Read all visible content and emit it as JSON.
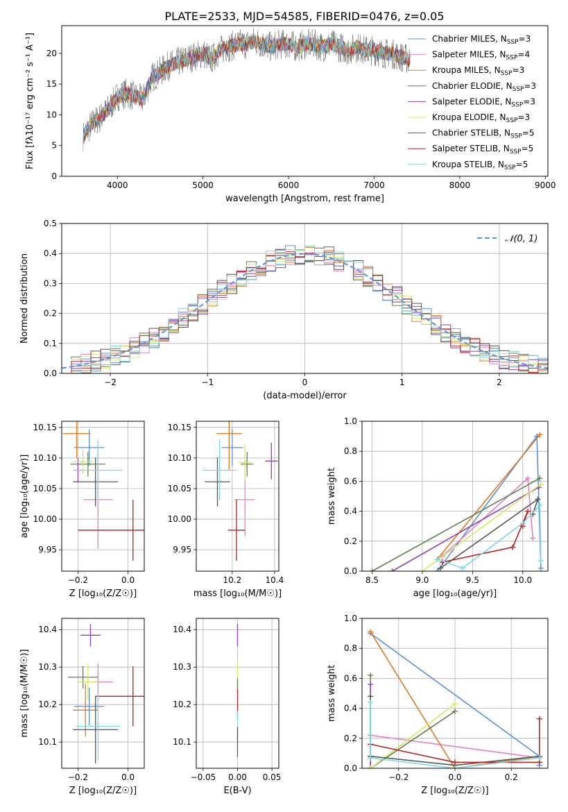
{
  "figure": {
    "title": "PLATE=2533, MJD=54585, FIBERID=0476, z=0.05"
  },
  "colors": {
    "chabrier_miles": "#5b8fd9",
    "salpeter_miles": "#e67fbf",
    "kroupa_miles": "#e0781f",
    "chabrier_elodie": "#5f7f4f",
    "salpeter_elodie": "#8e3fb0",
    "kroupa_elodie": "#d6e860",
    "chabrier_stelib": "#555555",
    "salpeter_stelib": "#b5221f",
    "kroupa_stelib": "#7fd6e3",
    "normal": "#6a93d6",
    "grid": "#b0b0b0"
  },
  "chart_data": [
    {
      "id": "spectrum",
      "type": "line",
      "xlabel": "wavelength [Angstrom, rest frame]",
      "ylabel": "Flux [fλ10⁻¹⁷ erg cm⁻² s⁻¹ A⁻¹]",
      "xlim": [
        3350,
        9030
      ],
      "ylim": [
        0,
        24.5
      ],
      "xticks": [
        4000,
        5000,
        6000,
        7000,
        8000,
        9000
      ],
      "yticks": [
        0,
        5,
        10,
        15,
        20
      ],
      "grid": false,
      "legend_position": "right",
      "legend": [
        "Chabrier MILES, N_SSP=3",
        "Salpeter MILES, N_SSP=4",
        "Kroupa MILES, N_SSP=3",
        "Chabrier ELODIE, N_SSP=3",
        "Salpeter ELODIE, N_SSP=3",
        "Kroupa ELODIE, N_SSP=3",
        "Chabrier STELIB, N_SSP=5",
        "Salpeter STELIB, N_SSP=5",
        "Kroupa STELIB, N_SSP=5"
      ],
      "data_wavelength": [
        3600,
        3700,
        3800,
        3900,
        4000,
        4100,
        4200,
        4300,
        4400,
        4500,
        4600,
        4700,
        4800,
        4900,
        5000,
        5100,
        5200,
        5300,
        5400,
        5500,
        5600,
        5700,
        5800,
        5900,
        6000,
        6100,
        6200,
        6300,
        6400,
        6500,
        6600,
        6700,
        6800,
        6900,
        7000,
        7100,
        7200,
        7300,
        7400
      ],
      "data_flux": [
        6.5,
        8.5,
        9.5,
        11.0,
        13.0,
        13.5,
        13.0,
        12.5,
        16.0,
        17.0,
        18.0,
        18.5,
        19.0,
        19.5,
        20.0,
        19.0,
        20.5,
        21.0,
        21.5,
        21.5,
        22.0,
        21.5,
        21.0,
        21.5,
        21.5,
        21.0,
        21.5,
        21.5,
        21.0,
        21.5,
        21.0,
        20.5,
        21.0,
        20.5,
        20.5,
        20.0,
        20.0,
        19.5,
        19.0
      ]
    },
    {
      "id": "residuals",
      "type": "histogram",
      "xlabel": "(data-model)/error",
      "ylabel": "Normed distribution",
      "xlim": [
        -2.5,
        2.5
      ],
      "ylim": [
        0,
        0.5
      ],
      "xticks": [
        -2,
        -1,
        0,
        1,
        2
      ],
      "yticks": [
        0.0,
        0.1,
        0.2,
        0.3,
        0.4,
        0.5
      ],
      "grid": true,
      "legend_position": "top-right",
      "legend": [
        "𝒩(0, 1)"
      ],
      "bin_width": 0.1
    },
    {
      "id": "age_vs_Z",
      "type": "errorbar",
      "xlabel": "Z [log₁₀(Z/Z☉)]",
      "ylabel": "age  [log₁₀(age/yr)]",
      "xlim": [
        -0.265,
        0.065
      ],
      "ylim": [
        9.915,
        10.16
      ],
      "xticks": [
        -0.2,
        0.0
      ],
      "yticks": [
        9.95,
        10.0,
        10.05,
        10.1,
        10.15
      ],
      "grid": true,
      "points": [
        {
          "model": "chabrier_miles",
          "x": -0.155,
          "xerr": 0.06,
          "y": 10.117,
          "yerr": 0.03
        },
        {
          "model": "salpeter_miles",
          "x": -0.12,
          "xerr": 0.06,
          "y": 10.032,
          "yerr": 0.08
        },
        {
          "model": "kroupa_miles",
          "x": -0.205,
          "xerr": 0.055,
          "y": 10.14,
          "yerr": 0.04
        },
        {
          "model": "chabrier_elodie",
          "x": -0.16,
          "xerr": 0.07,
          "y": 10.09,
          "yerr": 0.02
        },
        {
          "model": "salpeter_elodie",
          "x": -0.2,
          "xerr": 0.015,
          "y": 10.08,
          "yerr": 0.02
        },
        {
          "model": "kroupa_elodie",
          "x": -0.18,
          "xerr": 0.04,
          "y": 10.094,
          "yerr": 0.02
        },
        {
          "model": "chabrier_stelib",
          "x": -0.13,
          "xerr": 0.09,
          "y": 10.061,
          "yerr": 0.04
        },
        {
          "model": "salpeter_stelib",
          "x": 0.02,
          "xerr": 0.22,
          "y": 9.982,
          "yerr": 0.05
        },
        {
          "model": "kroupa_stelib",
          "x": -0.12,
          "xerr": 0.1,
          "y": 10.08,
          "yerr": 0.05
        }
      ]
    },
    {
      "id": "age_vs_mass",
      "type": "errorbar",
      "xlabel": "mass [log₁₀(M/M☉)]",
      "ylabel": "",
      "xlim": [
        10.03,
        10.42
      ],
      "ylim": [
        9.915,
        10.16
      ],
      "xticks": [
        10.2,
        10.4
      ],
      "yticks": [
        9.95,
        10.0,
        10.05,
        10.1,
        10.15
      ],
      "grid": true,
      "points": [
        {
          "model": "chabrier_miles",
          "x": 10.2,
          "xerr": 0.05,
          "y": 10.117,
          "yerr": 0.03
        },
        {
          "model": "salpeter_miles",
          "x": 10.26,
          "xerr": 0.05,
          "y": 10.032,
          "yerr": 0.06
        },
        {
          "model": "kroupa_miles",
          "x": 10.185,
          "xerr": 0.06,
          "y": 10.14,
          "yerr": 0.06
        },
        {
          "model": "chabrier_elodie",
          "x": 10.27,
          "xerr": 0.03,
          "y": 10.09,
          "yerr": 0.02
        },
        {
          "model": "salpeter_elodie",
          "x": 10.385,
          "xerr": 0.03,
          "y": 10.095,
          "yerr": 0.03
        },
        {
          "model": "kroupa_elodie",
          "x": 10.26,
          "xerr": 0.03,
          "y": 10.093,
          "yerr": 0.03
        },
        {
          "model": "chabrier_stelib",
          "x": 10.13,
          "xerr": 0.06,
          "y": 10.061,
          "yerr": 0.04
        },
        {
          "model": "salpeter_stelib",
          "x": 10.22,
          "xerr": 0.04,
          "y": 9.982,
          "yerr": 0.05
        },
        {
          "model": "kroupa_stelib",
          "x": 10.14,
          "xerr": 0.08,
          "y": 10.08,
          "yerr": 0.05
        }
      ]
    },
    {
      "id": "mass_weight_vs_age",
      "type": "line",
      "xlabel": "age  [log₁₀(age/yr)]",
      "ylabel": "mass weight",
      "xlim": [
        8.4,
        10.25
      ],
      "ylim": [
        0,
        1
      ],
      "xticks": [
        8.5,
        9.0,
        9.5,
        10.0
      ],
      "yticks": [
        0.0,
        0.2,
        0.4,
        0.6,
        0.8,
        1.0
      ],
      "grid": true,
      "series": [
        {
          "model": "chabrier_miles",
          "x": [
            9.15,
            10.14,
            10.18
          ],
          "y": [
            0.0,
            0.9,
            0.02
          ]
        },
        {
          "model": "salpeter_miles",
          "x": [
            9.2,
            10.05,
            10.1
          ],
          "y": [
            0.1,
            0.62,
            0.22
          ]
        },
        {
          "model": "kroupa_miles",
          "x": [
            9.15,
            10.17
          ],
          "y": [
            0.08,
            0.91
          ]
        },
        {
          "model": "chabrier_elodie",
          "x": [
            8.5,
            10.17
          ],
          "y": [
            0.0,
            0.62
          ]
        },
        {
          "model": "salpeter_elodie",
          "x": [
            8.7,
            10.16
          ],
          "y": [
            0.0,
            0.56
          ]
        },
        {
          "model": "kroupa_elodie",
          "x": [
            9.0,
            10.18
          ],
          "y": [
            0.0,
            0.58
          ]
        },
        {
          "model": "chabrier_stelib",
          "x": [
            9.18,
            10.15,
            10.1
          ],
          "y": [
            0.02,
            0.48,
            0.38
          ]
        },
        {
          "model": "salpeter_stelib",
          "x": [
            9.2,
            9.9,
            10.05,
            10.0
          ],
          "y": [
            0.06,
            0.16,
            0.4,
            0.3
          ]
        },
        {
          "model": "kroupa_stelib",
          "x": [
            9.15,
            9.4,
            10.0,
            10.17,
            10.18
          ],
          "y": [
            0.08,
            0.02,
            0.32,
            0.44,
            0.07
          ]
        }
      ]
    },
    {
      "id": "mass_vs_Z",
      "type": "errorbar",
      "xlabel": "Z [log₁₀(Z/Z☉)]",
      "ylabel": "mass [log₁₀(M/M☉)]",
      "xlim": [
        -0.265,
        0.065
      ],
      "ylim": [
        10.03,
        10.43
      ],
      "xticks": [
        -0.2,
        0.0
      ],
      "yticks": [
        10.1,
        10.2,
        10.3,
        10.4
      ],
      "grid": true,
      "points": [
        {
          "model": "chabrier_miles",
          "x": -0.155,
          "xerr": 0.06,
          "y": 10.195,
          "yerr": 0.05
        },
        {
          "model": "salpeter_miles",
          "x": -0.12,
          "xerr": 0.06,
          "y": 10.26,
          "yerr": 0.05
        },
        {
          "model": "kroupa_miles",
          "x": -0.17,
          "xerr": 0.05,
          "y": 10.185,
          "yerr": 0.07
        },
        {
          "model": "chabrier_elodie",
          "x": -0.18,
          "xerr": 0.06,
          "y": 10.273,
          "yerr": 0.03
        },
        {
          "model": "salpeter_elodie",
          "x": -0.15,
          "xerr": 0.04,
          "y": 10.385,
          "yerr": 0.03
        },
        {
          "model": "kroupa_elodie",
          "x": -0.16,
          "xerr": 0.04,
          "y": 10.26,
          "yerr": 0.05
        },
        {
          "model": "chabrier_stelib",
          "x": -0.13,
          "xerr": 0.09,
          "y": 10.133,
          "yerr": 0.09
        },
        {
          "model": "salpeter_stelib",
          "x": 0.02,
          "xerr": 0.15,
          "y": 10.222,
          "yerr": 0.08
        },
        {
          "model": "kroupa_stelib",
          "x": -0.12,
          "xerr": 0.09,
          "y": 10.142,
          "yerr": 0.09
        }
      ]
    },
    {
      "id": "mass_vs_ebv",
      "type": "errorbar",
      "xlabel": "E(B-V)",
      "ylabel": "",
      "xlim": [
        -0.06,
        0.06
      ],
      "ylim": [
        10.03,
        10.43
      ],
      "xticks": [
        -0.05,
        0.0,
        0.05
      ],
      "yticks": [
        10.1,
        10.2,
        10.3,
        10.4
      ],
      "grid": true,
      "points": [
        {
          "model": "salpeter_elodie",
          "x": 0.0,
          "xerr": 0.0,
          "y": 10.385,
          "yerr": 0.03
        },
        {
          "model": "kroupa_elodie",
          "x": 0.0,
          "xerr": 0.0,
          "y": 10.27,
          "yerr": 0.04
        },
        {
          "model": "chabrier_elodie",
          "x": 0.0,
          "xerr": 0.0,
          "y": 10.25,
          "yerr": 0.02
        },
        {
          "model": "salpeter_stelib",
          "x": 0.0,
          "xerr": 0.0,
          "y": 10.2,
          "yerr": 0.04
        },
        {
          "model": "kroupa_stelib",
          "x": 0.0,
          "xerr": 0.0,
          "y": 10.142,
          "yerr": 0.04
        },
        {
          "model": "chabrier_stelib",
          "x": 0.0,
          "xerr": 0.0,
          "y": 10.1,
          "yerr": 0.04
        }
      ]
    },
    {
      "id": "mass_weight_vs_Z",
      "type": "line",
      "xlabel": "Z [log₁₀(Z/Z☉)]",
      "ylabel": "mass weight",
      "xlim": [
        -0.33,
        0.33
      ],
      "ylim": [
        0,
        1
      ],
      "xticks": [
        -0.2,
        0.0,
        0.2
      ],
      "yticks": [
        0.0,
        0.2,
        0.4,
        0.6,
        0.8,
        1.0
      ],
      "grid": true,
      "series": [
        {
          "model": "chabrier_miles",
          "x": [
            -0.3,
            0.3,
            0.3
          ],
          "y": [
            0.9,
            0.08,
            0.02
          ]
        },
        {
          "model": "salpeter_miles",
          "x": [
            -0.3,
            0.3
          ],
          "y": [
            0.22,
            0.07
          ]
        },
        {
          "model": "kroupa_miles",
          "x": [
            -0.3,
            0.0,
            0.3
          ],
          "y": [
            0.91,
            0.0,
            0.08
          ]
        },
        {
          "model": "chabrier_elodie",
          "x": [
            -0.3,
            -0.3,
            0.0
          ],
          "y": [
            0.62,
            0.0,
            0.38
          ]
        },
        {
          "model": "salpeter_elodie",
          "x": [
            -0.3,
            -0.3
          ],
          "y": [
            0.56,
            0.0
          ]
        },
        {
          "model": "kroupa_elodie",
          "x": [
            -0.3,
            0.0
          ],
          "y": [
            0.0,
            0.43
          ]
        },
        {
          "model": "chabrier_stelib",
          "x": [
            -0.3,
            -0.3,
            0.0,
            0.3
          ],
          "y": [
            0.48,
            0.08,
            0.02,
            0.08
          ]
        },
        {
          "model": "salpeter_stelib",
          "x": [
            -0.3,
            0.0,
            0.3,
            0.3
          ],
          "y": [
            0.16,
            0.04,
            0.04,
            0.33
          ]
        },
        {
          "model": "kroupa_stelib",
          "x": [
            -0.3,
            -0.3,
            0.0,
            0.3
          ],
          "y": [
            0.44,
            0.07,
            0.0,
            0.07
          ]
        }
      ]
    }
  ]
}
